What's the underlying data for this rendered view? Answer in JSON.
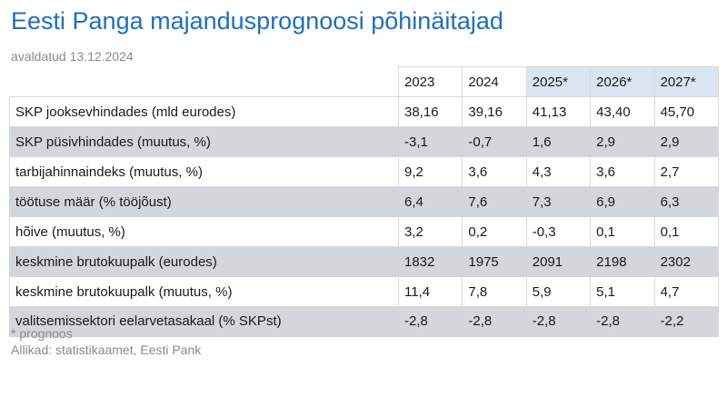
{
  "title": "Eesti Panga majandusprognoosi põhinäitajad",
  "subtitle": "avaldatud 13.12.2024",
  "chart_data": {
    "type": "table",
    "columns": [
      "2023",
      "2024",
      "2025*",
      "2026*",
      "2027*"
    ],
    "forecast_columns": [
      "2025*",
      "2026*",
      "2027*"
    ],
    "forecast_header_color": "#dbe5f2",
    "shaded_row_color": "#d3d6da",
    "rows": [
      {
        "label": "SKP jooksevhindades (mld eurodes)",
        "values": [
          "38,16",
          "39,16",
          "41,13",
          "43,40",
          "45,70"
        ]
      },
      {
        "label": "SKP püsivhindades (muutus, %)",
        "values": [
          "-3,1",
          "-0,7",
          "1,6",
          "2,9",
          "2,9"
        ]
      },
      {
        "label": "tarbijahinnaindeks (muutus, %)",
        "values": [
          "9,2",
          "3,6",
          "4,3",
          "3,6",
          "2,7"
        ]
      },
      {
        "label": "töötuse määr (% tööjõust)",
        "values": [
          "6,4",
          "7,6",
          "7,3",
          "6,9",
          "6,3"
        ]
      },
      {
        "label": "hõive (muutus, %)",
        "values": [
          "3,2",
          "0,2",
          "-0,3",
          "0,1",
          "0,1"
        ]
      },
      {
        "label": "keskmine brutokuupalk (eurodes)",
        "values": [
          "1832",
          "1975",
          "2091",
          "2198",
          "2302"
        ]
      },
      {
        "label": "keskmine brutokuupalk (muutus, %)",
        "values": [
          "11,4",
          "7,8",
          "5,9",
          "5,1",
          "4,7"
        ]
      },
      {
        "label": "valitsemissektori eelarvetasakaal (% SKPst)",
        "values": [
          "-2,8",
          "-2,8",
          "-2,8",
          "-2,8",
          "-2,2"
        ]
      }
    ]
  },
  "footnotes": {
    "forecast_note": "* prognoos",
    "sources": "Allikad: statistikaamet, Eesti Pank"
  }
}
